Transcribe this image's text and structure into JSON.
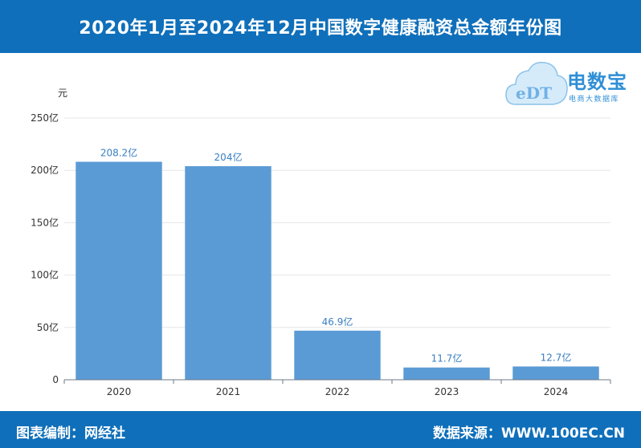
{
  "header": {
    "title": "2020年1月至2024年12月中国数字健康融资总金额年份图"
  },
  "footer": {
    "left": "图表编制：网经社",
    "right": "数据来源：WWW.100EC.CN"
  },
  "logo": {
    "brand": "电数宝",
    "tagline": "电商大数据库",
    "mark": "eDT"
  },
  "colors": {
    "bar": "#5b9bd5",
    "header": "#0f6fba",
    "label": "#3a7fc1"
  },
  "chart_data": {
    "type": "bar",
    "title": "2020年1月至2024年12月中国数字健康融资总金额年份图",
    "ylabel": "元",
    "xlabel": "",
    "categories": [
      "2020",
      "2021",
      "2022",
      "2023",
      "2024"
    ],
    "values": [
      208.2,
      204,
      46.9,
      11.7,
      12.7
    ],
    "data_labels": [
      "208.2亿",
      "204亿",
      "46.9亿",
      "11.7亿",
      "12.7亿"
    ],
    "ylim": [
      0,
      250
    ],
    "yticks": [
      0,
      50,
      100,
      150,
      200,
      250
    ],
    "ytick_labels": [
      "0",
      "50亿",
      "100亿",
      "150亿",
      "200亿",
      "250亿"
    ],
    "grid": true
  }
}
